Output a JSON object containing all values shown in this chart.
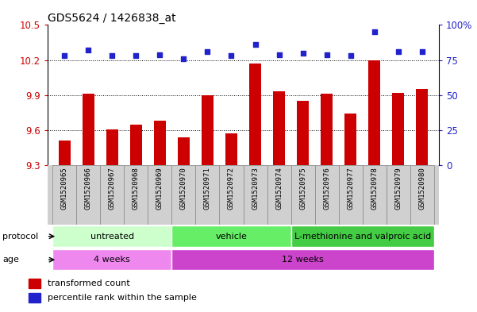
{
  "title": "GDS5624 / 1426838_at",
  "samples": [
    "GSM1520965",
    "GSM1520966",
    "GSM1520967",
    "GSM1520968",
    "GSM1520969",
    "GSM1520970",
    "GSM1520971",
    "GSM1520972",
    "GSM1520973",
    "GSM1520974",
    "GSM1520975",
    "GSM1520976",
    "GSM1520977",
    "GSM1520978",
    "GSM1520979",
    "GSM1520980"
  ],
  "transformed_counts": [
    9.51,
    9.91,
    9.61,
    9.65,
    9.68,
    9.54,
    9.9,
    9.57,
    10.17,
    9.93,
    9.85,
    9.91,
    9.74,
    10.2,
    9.92,
    9.95
  ],
  "percentile_ranks": [
    78,
    82,
    78,
    78,
    79,
    76,
    81,
    78,
    86,
    79,
    80,
    79,
    78,
    95,
    81,
    81
  ],
  "ylim_left": [
    9.3,
    10.5
  ],
  "ylim_right": [
    0,
    100
  ],
  "yticks_left": [
    9.3,
    9.6,
    9.9,
    10.2,
    10.5
  ],
  "yticks_right": [
    0,
    25,
    50,
    75,
    100
  ],
  "ytick_labels_right": [
    "0",
    "25",
    "50",
    "75",
    "100%"
  ],
  "bar_color": "#cc0000",
  "dot_color": "#2222cc",
  "bar_width": 0.5,
  "protocol_groups": [
    {
      "label": "untreated",
      "start": 0,
      "end": 4,
      "color": "#ccffcc"
    },
    {
      "label": "vehicle",
      "start": 5,
      "end": 9,
      "color": "#66ee66"
    },
    {
      "label": "L-methionine and valproic acid",
      "start": 10,
      "end": 15,
      "color": "#44cc44"
    }
  ],
  "age_groups": [
    {
      "label": "4 weeks",
      "start": 0,
      "end": 4,
      "color": "#ee88ee"
    },
    {
      "label": "12 weeks",
      "start": 5,
      "end": 15,
      "color": "#cc44cc"
    }
  ],
  "protocol_label": "protocol",
  "age_label": "age",
  "legend_bar_label": "transformed count",
  "legend_dot_label": "percentile rank within the sample",
  "tick_color_left": "#cc0000",
  "tick_color_right": "#2222cc",
  "xlim": [
    -0.7,
    15.7
  ],
  "sample_area_color": "#d0d0d0"
}
